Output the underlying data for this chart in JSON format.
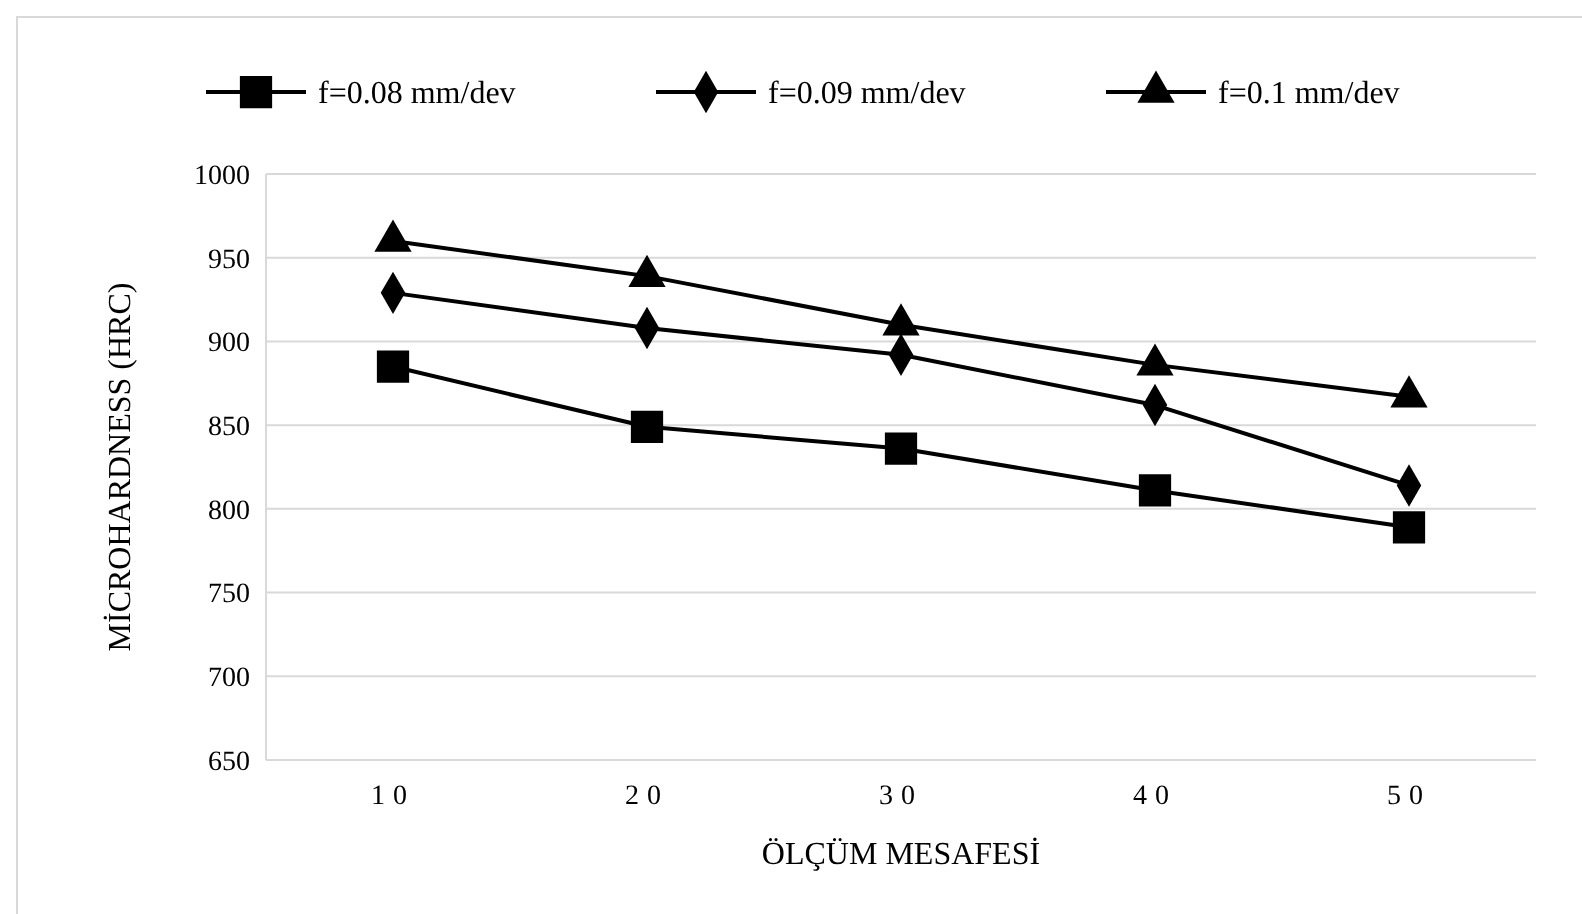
{
  "chart_data": {
    "type": "line",
    "xlabel": "ÖLÇÜM MESAFESİ",
    "ylabel": "MİCROHARDNESS (HRC)",
    "categories": [
      "10",
      "20",
      "30",
      "40",
      "50"
    ],
    "series": [
      {
        "name": "f=0.08 mm/dev",
        "color": "#000000",
        "marker": "square",
        "values": [
          885,
          849,
          836,
          811,
          789
        ]
      },
      {
        "name": "f=0.09 mm/dev",
        "color": "#000000",
        "marker": "diamond",
        "values": [
          929,
          908,
          892,
          862,
          814
        ]
      },
      {
        "name": "f=0.1 mm/dev",
        "color": "#000000",
        "marker": "triangle",
        "values": [
          960,
          939,
          910,
          886,
          867
        ]
      }
    ],
    "ylim": [
      650,
      1000
    ],
    "yticks": [
      650,
      700,
      750,
      800,
      850,
      900,
      950,
      1000
    ],
    "grid": "y",
    "legend": "top",
    "line_style": "solid"
  }
}
